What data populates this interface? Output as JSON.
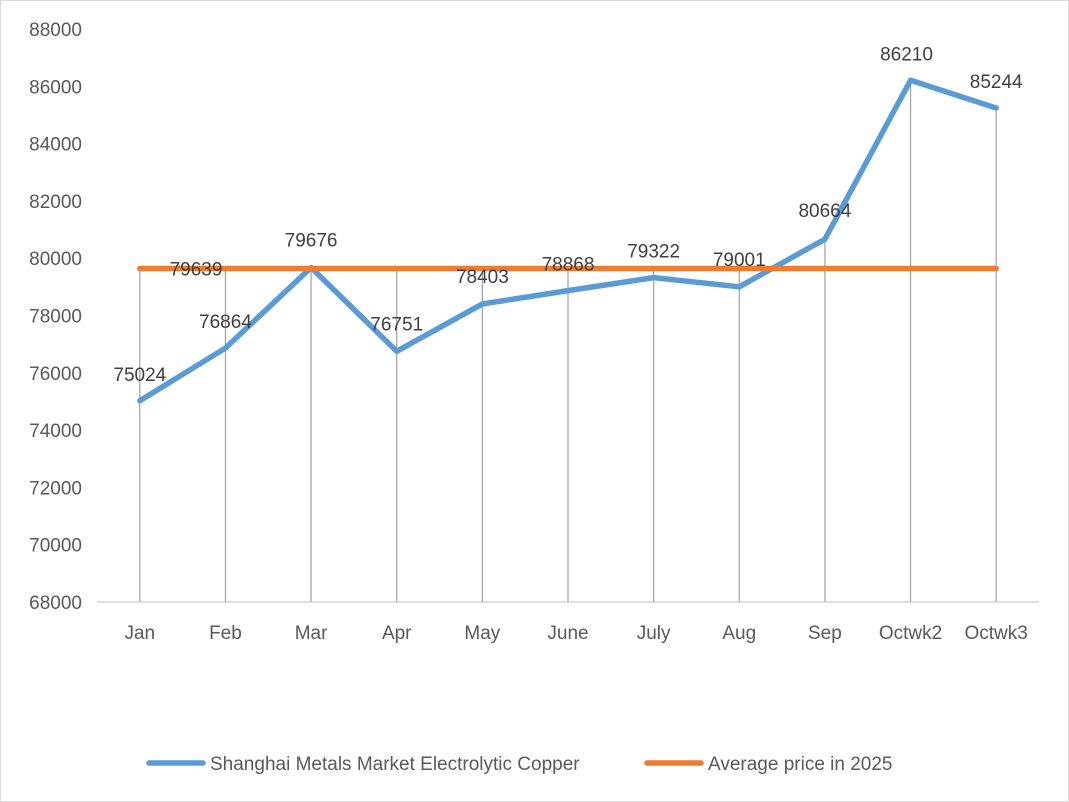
{
  "chart_data": {
    "type": "line",
    "title": "",
    "xlabel": "",
    "ylabel": "",
    "categories": [
      "Jan",
      "Feb",
      "Mar",
      "Apr",
      "May",
      "June",
      "July",
      "Aug",
      "Sep",
      "Octwk2",
      "Octwk3"
    ],
    "ylim": [
      68000,
      88000
    ],
    "yticks": [
      68000,
      70000,
      72000,
      74000,
      76000,
      78000,
      80000,
      82000,
      84000,
      86000,
      88000
    ],
    "drop_lines": true,
    "gridlines": false,
    "legend_position": "bottom",
    "series": [
      {
        "name": "Shanghai Metals Market Electrolytic Copper",
        "color": "#5B9BD5",
        "values": [
          75024,
          76864,
          79676,
          76751,
          78403,
          78868,
          79322,
          79001,
          80664,
          86210,
          85244
        ],
        "data_labels": true
      },
      {
        "name": "Average price in 2025",
        "color": "#ED7D31",
        "values": [
          79639,
          79639,
          79639,
          79639,
          79639,
          79639,
          79639,
          79639,
          79639,
          79639,
          79639
        ],
        "data_labels": false,
        "label_text": "79639"
      }
    ]
  }
}
